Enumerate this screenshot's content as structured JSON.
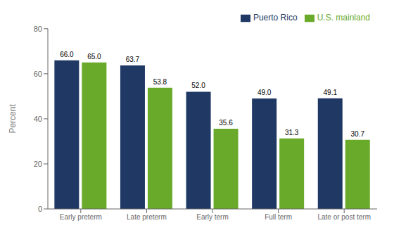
{
  "chart_data": {
    "type": "bar",
    "categories": [
      "Early preterm",
      "Late preterm",
      "Early term",
      "Full term",
      "Late or post term"
    ],
    "series": [
      {
        "name": "Puerto Rico",
        "color": "#1f3864",
        "values": [
          66.0,
          63.7,
          52.0,
          49.0,
          49.1
        ],
        "value_labels": [
          "66.0",
          "63.7",
          "52.0",
          "49.0",
          "49.1"
        ]
      },
      {
        "name": "U.S. mainland",
        "color": "#6aaa2a",
        "values": [
          65.0,
          53.8,
          35.6,
          31.3,
          30.7
        ],
        "value_labels": [
          "65.0",
          "53.8",
          "35.6",
          "31.3",
          "30.7"
        ]
      }
    ],
    "ylabel": "Percent",
    "ylim": [
      0,
      80
    ],
    "yticks": [
      0,
      20,
      40,
      60,
      80
    ],
    "grid": false,
    "legend": "upper right",
    "data_labels": true
  }
}
